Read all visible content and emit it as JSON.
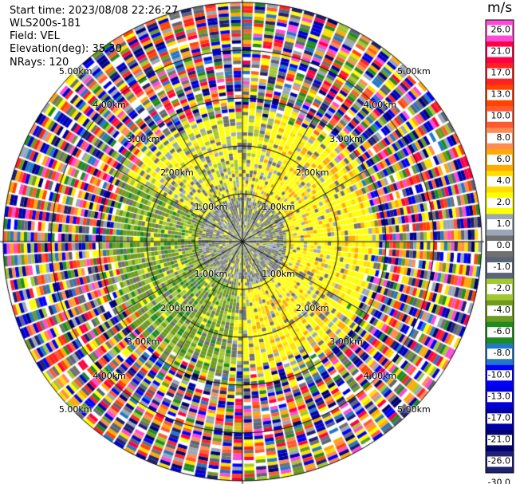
{
  "header": {
    "start_time": "Start time: 2023/08/08 22:26:27",
    "instrument": "WLS200s-181",
    "field": "Field: VEL",
    "elevation": "Elevation(deg): 35.30",
    "nrays": "NRays: 120"
  },
  "chart_data": {
    "type": "heatmap",
    "projection": "polar-ppi",
    "field": "VEL",
    "nrays": 120,
    "elevation_deg": 35.3,
    "range_rings_km": [
      1.0,
      2.0,
      3.0,
      4.0,
      5.0
    ],
    "ring_labels": [
      "1.00km",
      "2.00km",
      "3.00km",
      "4.00km",
      "5.00km"
    ],
    "crosshair": true,
    "colorbar": {
      "unit": "m/s",
      "levels": [
        26.0,
        21.0,
        17.0,
        13.0,
        10.0,
        8.0,
        6.0,
        4.0,
        2.0,
        1.0,
        0.0,
        -1.0,
        -2.0,
        -4.0,
        -6.0,
        -8.0,
        -10.0,
        -13.0,
        -17.0,
        -21.0,
        -26.0,
        -30.0
      ],
      "labels": [
        "26.0",
        "21.0",
        "17.0",
        "13.0",
        "10.0",
        "8.0",
        "6.0",
        "4.0",
        "2.0",
        "1.0",
        "0.0",
        "-1.0",
        "-2.0",
        "-4.0",
        "-6.0",
        "-8.0",
        "-10.0",
        "-13.0",
        "-17.0",
        "-21.0",
        "-26.0",
        "-30.0"
      ],
      "colors": [
        "#ff4ad7",
        "#ff0044",
        "#ff2222",
        "#ff4400",
        "#ff5a32",
        "#ff8b55",
        "#ffaa00",
        "#ffdd00",
        "#ffff00",
        "#9aa7b8",
        "#707070",
        "#5a6478",
        "#a2c832",
        "#6e9a1e",
        "#1e8c1e",
        "#2278c8",
        "#0000ff",
        "#0000d8",
        "#0000a6",
        "#000072",
        "#202070"
      ]
    }
  }
}
